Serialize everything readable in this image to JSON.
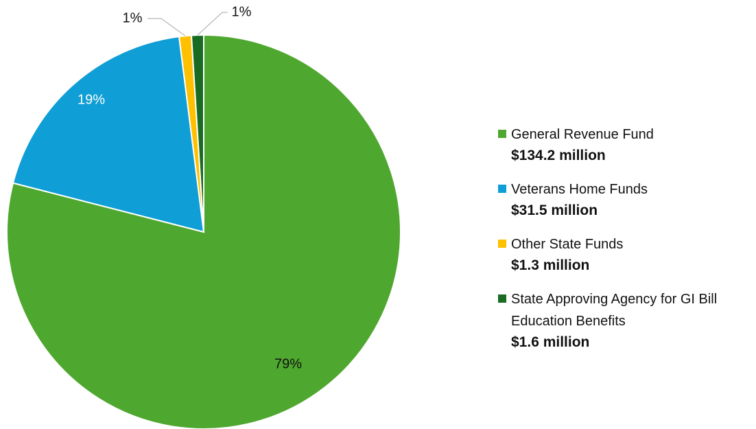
{
  "chart_data": {
    "type": "pie",
    "categories": [
      "General Revenue Fund",
      "Veterans Home Funds",
      "Other State Funds",
      "State Approving Agency for GI Bill Education Benefits"
    ],
    "values": [
      79,
      19,
      1,
      1
    ],
    "value_labels": [
      "79%",
      "19%",
      "1%",
      "1%"
    ],
    "amounts": [
      "$134.2 million",
      "$31.5 million",
      "$1.3 million",
      "$1.6 million"
    ],
    "colors": [
      "#4ea72e",
      "#0f9ed5",
      "#ffc000",
      "#196b24"
    ],
    "legend": "right"
  }
}
